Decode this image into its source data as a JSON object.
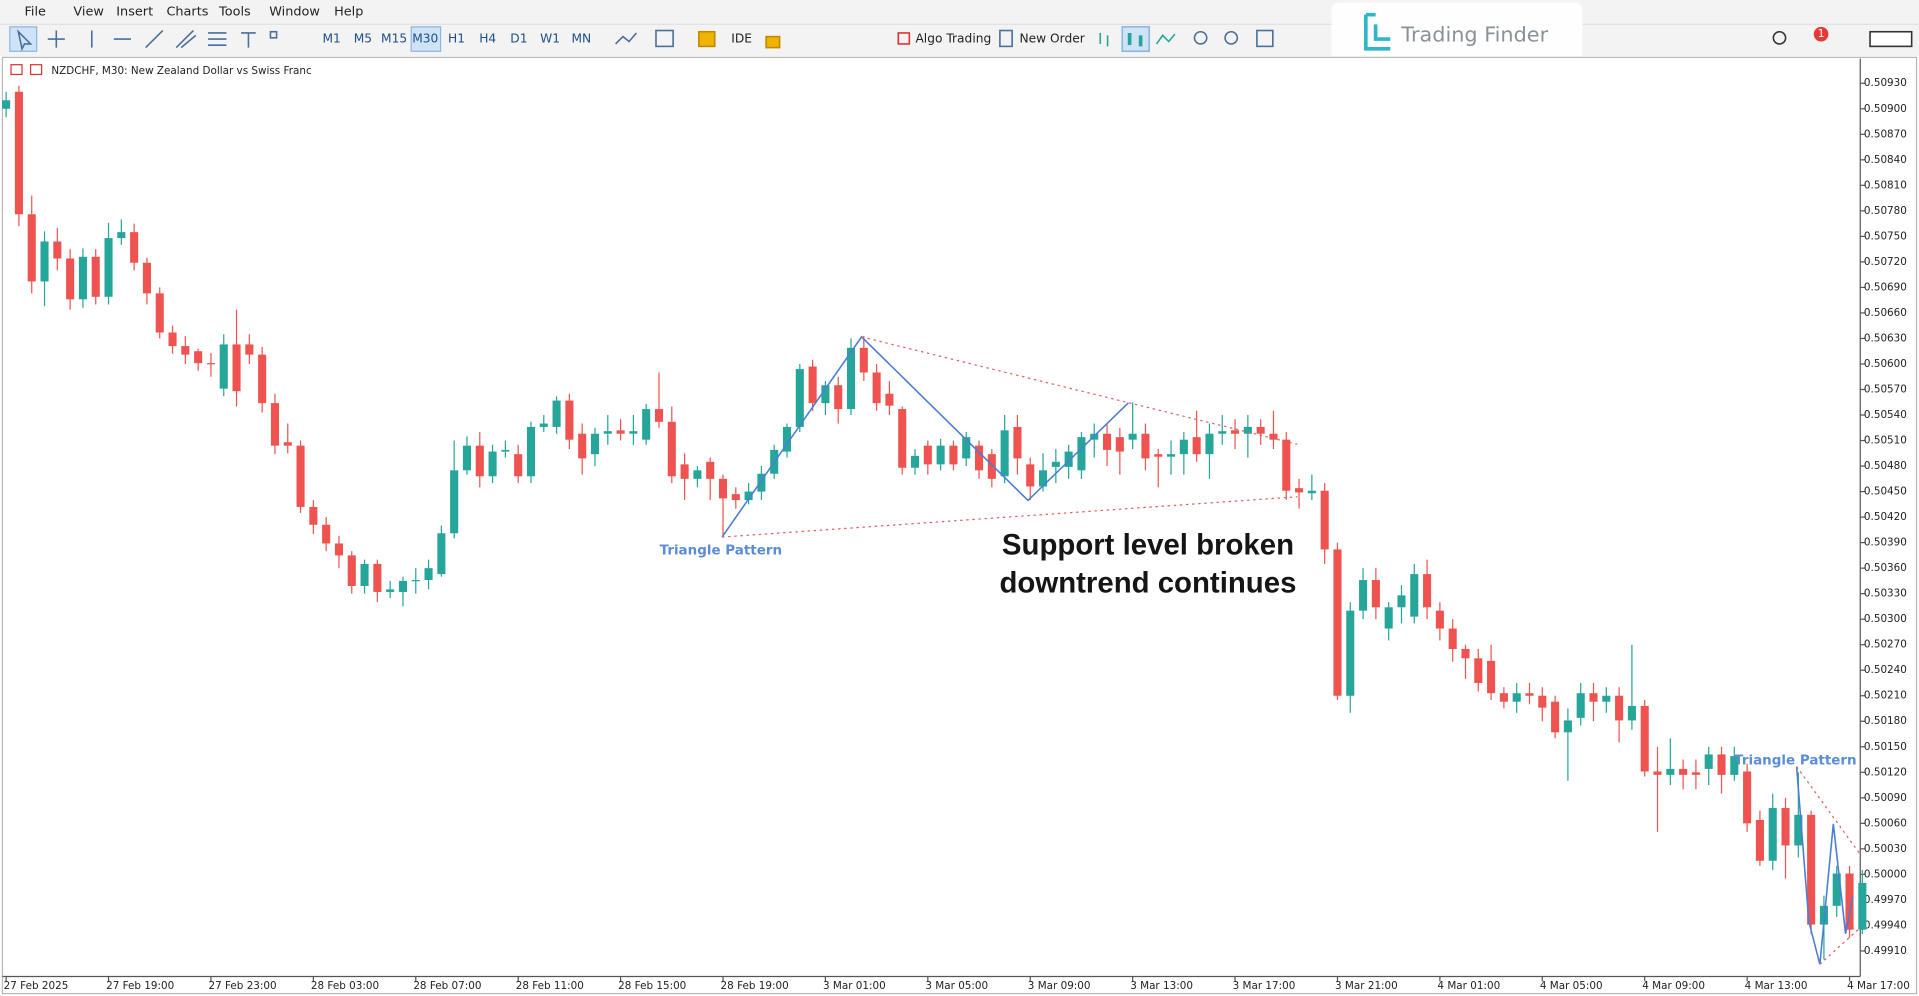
{
  "ui": {
    "menu": [
      "File",
      "View",
      "Insert",
      "Charts",
      "Tools",
      "Window",
      "Help"
    ],
    "timeframes": [
      "M1",
      "M5",
      "M15",
      "M30",
      "H1",
      "H4",
      "D1",
      "W1",
      "MN"
    ],
    "buttons": [
      "IDE",
      "Algo Trading",
      "New Order"
    ],
    "logo": "Trading Finder",
    "badge": 1
  },
  "chart_data": {
    "type": "candlestick",
    "title": "NZDCHF, M30:  New Zealand Dollar vs Swiss Franc",
    "up_color": "#26a69a",
    "down_color": "#ef5350",
    "grid": false,
    "open": [
      0.509,
      0.5092,
      0.50776,
      0.50697,
      0.50744,
      0.50724,
      0.50676,
      0.50726,
      0.50679,
      0.50748,
      0.50755,
      0.50719,
      0.50683,
      0.50637,
      0.50621,
      0.50615,
      0.50601,
      0.50571,
      0.50623,
      0.50623,
      0.50611,
      0.50554,
      0.50508,
      0.50504,
      0.50432,
      0.50411,
      0.50389,
      0.50375,
      0.50339,
      0.50365,
      0.50332,
      0.50332,
      0.50345,
      0.50346,
      0.50353,
      0.50401,
      0.50475,
      0.50504,
      0.50468,
      0.50497,
      0.50494,
      0.50468,
      0.50526,
      0.50526,
      0.50557,
      0.50518,
      0.50494,
      0.50518,
      0.50522,
      0.50518,
      0.50511,
      0.50547,
      0.50532,
      0.50482,
      0.50465,
      0.50485,
      0.50465,
      0.50447,
      0.5044,
      0.5045,
      0.50471,
      0.50497,
      0.50526,
      0.50597,
      0.50554,
      0.50575,
      0.50547,
      0.50619,
      0.5059,
      0.50565,
      0.50547,
      0.50478,
      0.50504,
      0.50482,
      0.50504,
      0.50489,
      0.50504,
      0.50494,
      0.50468,
      0.50526,
      0.50482,
      0.50456,
      0.50479,
      0.50479,
      0.50475,
      0.50511,
      0.50518,
      0.50514,
      0.50511,
      0.50518,
      0.50494,
      0.50491,
      0.50494,
      0.50514,
      0.50494,
      0.50518,
      0.50522,
      0.50518,
      0.50526,
      0.50518,
      0.50511,
      0.50454,
      0.50448,
      0.50451,
      0.50382,
      0.5021,
      0.5031,
      0.50346,
      0.50289,
      0.50314,
      0.50303,
      0.50353,
      0.5031,
      0.50289,
      0.50265,
      0.50254,
      0.50251,
      0.50213,
      0.50203,
      0.50213,
      0.5021,
      0.50203,
      0.50167,
      0.50184,
      0.50213,
      0.50203,
      0.5021,
      0.50181,
      0.50198,
      0.50121,
      0.50117,
      0.50124,
      0.5012,
      0.50124,
      0.50141,
      0.50117,
      0.50121,
      0.50064,
      0.50016,
      0.50078,
      0.50034,
      0.5007,
      0.49941,
      0.49963,
      0.50001,
      0.49935
    ],
    "high": [
      0.5092,
      0.50927,
      0.50798,
      0.50756,
      0.5076,
      0.50735,
      0.50736,
      0.50735,
      0.50766,
      0.5077,
      0.50765,
      0.50725,
      0.5069,
      0.50645,
      0.50633,
      0.50618,
      0.50613,
      0.50635,
      0.50664,
      0.50635,
      0.5062,
      0.50565,
      0.5053,
      0.5051,
      0.5044,
      0.5042,
      0.50398,
      0.5038,
      0.5037,
      0.5037,
      0.50345,
      0.5035,
      0.5036,
      0.5037,
      0.5041,
      0.5051,
      0.50515,
      0.5052,
      0.50505,
      0.5051,
      0.50505,
      0.50532,
      0.5054,
      0.50562,
      0.50565,
      0.5053,
      0.50525,
      0.5054,
      0.50535,
      0.5054,
      0.50553,
      0.5059,
      0.5055,
      0.50495,
      0.5048,
      0.5049,
      0.5047,
      0.50455,
      0.5046,
      0.5048,
      0.50505,
      0.5053,
      0.506,
      0.50605,
      0.5058,
      0.50585,
      0.5063,
      0.50633,
      0.506,
      0.5058,
      0.5055,
      0.505,
      0.5051,
      0.50512,
      0.5051,
      0.5052,
      0.5051,
      0.505,
      0.5054,
      0.5054,
      0.5049,
      0.50495,
      0.505,
      0.50505,
      0.5052,
      0.5053,
      0.5053,
      0.50525,
      0.50555,
      0.5053,
      0.505,
      0.5051,
      0.5052,
      0.50545,
      0.5053,
      0.5054,
      0.50535,
      0.5054,
      0.50535,
      0.50545,
      0.5052,
      0.50465,
      0.5047,
      0.5046,
      0.5039,
      0.5032,
      0.5036,
      0.5036,
      0.5032,
      0.5034,
      0.50365,
      0.5037,
      0.5032,
      0.503,
      0.5027,
      0.50265,
      0.5027,
      0.5022,
      0.50225,
      0.50225,
      0.5022,
      0.5021,
      0.50195,
      0.50225,
      0.50225,
      0.5022,
      0.5022,
      0.5027,
      0.50205,
      0.5015,
      0.5016,
      0.50135,
      0.50135,
      0.5015,
      0.5015,
      0.5015,
      0.5013,
      0.50075,
      0.50095,
      0.5009,
      0.5012,
      0.50075,
      0.49975,
      0.5001,
      0.5001,
      0.50005
    ],
    "low": [
      0.5089,
      0.50762,
      0.50683,
      0.50668,
      0.5071,
      0.50664,
      0.50666,
      0.5067,
      0.5067,
      0.5074,
      0.5071,
      0.5067,
      0.5063,
      0.50612,
      0.506,
      0.50592,
      0.50585,
      0.50562,
      0.5055,
      0.506,
      0.50543,
      0.50494,
      0.50495,
      0.50425,
      0.504,
      0.5038,
      0.5036,
      0.5033,
      0.5033,
      0.5032,
      0.50325,
      0.50315,
      0.5033,
      0.50335,
      0.5035,
      0.50395,
      0.5047,
      0.50455,
      0.5046,
      0.5049,
      0.5046,
      0.5046,
      0.5052,
      0.50518,
      0.505,
      0.5047,
      0.5048,
      0.50505,
      0.5051,
      0.50505,
      0.50505,
      0.50525,
      0.5046,
      0.5044,
      0.50455,
      0.5044,
      0.50399,
      0.5043,
      0.50435,
      0.5044,
      0.50465,
      0.5049,
      0.5052,
      0.50545,
      0.5054,
      0.5053,
      0.5054,
      0.5058,
      0.50545,
      0.5054,
      0.5047,
      0.5047,
      0.5047,
      0.50475,
      0.50475,
      0.5048,
      0.50465,
      0.50455,
      0.5046,
      0.5047,
      0.5044,
      0.5045,
      0.5046,
      0.50465,
      0.50465,
      0.5049,
      0.5048,
      0.5047,
      0.505,
      0.50475,
      0.50455,
      0.5047,
      0.5047,
      0.50485,
      0.50465,
      0.50505,
      0.505,
      0.5049,
      0.50505,
      0.505,
      0.5044,
      0.5043,
      0.5044,
      0.50365,
      0.50205,
      0.5019,
      0.503,
      0.503,
      0.50275,
      0.50295,
      0.50295,
      0.503,
      0.50275,
      0.5025,
      0.5023,
      0.50215,
      0.50205,
      0.50195,
      0.5019,
      0.502,
      0.5018,
      0.5016,
      0.5011,
      0.50175,
      0.5018,
      0.5019,
      0.50155,
      0.5017,
      0.50115,
      0.5005,
      0.50105,
      0.501,
      0.501,
      0.50105,
      0.50095,
      0.5011,
      0.5005,
      0.5001,
      0.50005,
      0.49995,
      0.5002,
      0.4993,
      0.499,
      0.4995,
      0.49925,
      0.4993
    ],
    "close": [
      0.5091,
      0.50776,
      0.50697,
      0.50744,
      0.50724,
      0.50676,
      0.50726,
      0.50679,
      0.50748,
      0.50755,
      0.50719,
      0.50683,
      0.50637,
      0.50621,
      0.50611,
      0.50601,
      0.506,
      0.50623,
      0.50568,
      0.50611,
      0.50554,
      0.50504,
      0.50504,
      0.50432,
      0.50411,
      0.50389,
      0.50375,
      0.50339,
      0.50365,
      0.50332,
      0.50335,
      0.50345,
      0.50346,
      0.5036,
      0.50401,
      0.50475,
      0.50504,
      0.50468,
      0.50497,
      0.50499,
      0.50468,
      0.50526,
      0.5053,
      0.50557,
      0.50511,
      0.50489,
      0.50518,
      0.50521,
      0.50518,
      0.50521,
      0.50547,
      0.50532,
      0.50468,
      0.50465,
      0.50475,
      0.50465,
      0.50442,
      0.5044,
      0.5045,
      0.50471,
      0.50499,
      0.50526,
      0.50594,
      0.50554,
      0.50575,
      0.50547,
      0.50619,
      0.5059,
      0.50554,
      0.50551,
      0.50478,
      0.50492,
      0.50482,
      0.50504,
      0.50482,
      0.50514,
      0.50475,
      0.50465,
      0.50522,
      0.50489,
      0.50456,
      0.50475,
      0.50485,
      0.50497,
      0.50514,
      0.50518,
      0.50499,
      0.50497,
      0.50518,
      0.50489,
      0.50491,
      0.50494,
      0.50511,
      0.50494,
      0.50518,
      0.50521,
      0.50518,
      0.50526,
      0.50518,
      0.50511,
      0.50451,
      0.50449,
      0.50451,
      0.50382,
      0.5021,
      0.5031,
      0.50346,
      0.50314,
      0.50314,
      0.50328,
      0.50353,
      0.50314,
      0.50289,
      0.50265,
      0.50254,
      0.50225,
      0.50213,
      0.50203,
      0.50213,
      0.5021,
      0.50196,
      0.50167,
      0.50181,
      0.50213,
      0.50203,
      0.5021,
      0.50181,
      0.50198,
      0.50121,
      0.50117,
      0.50124,
      0.50117,
      0.50117,
      0.50141,
      0.50117,
      0.50139,
      0.5006,
      0.50016,
      0.50078,
      0.50034,
      0.5007,
      0.49941,
      0.49963,
      0.50001,
      0.49935,
      0.4999
    ],
    "ylim": [
      0.4988,
      0.50959
    ],
    "yticks": [
      {
        "value": 0.5093,
        "label": "0.50930"
      },
      {
        "value": 0.509,
        "label": "0.50900"
      },
      {
        "value": 0.5087,
        "label": "0.50870"
      },
      {
        "value": 0.5084,
        "label": "0.50840"
      },
      {
        "value": 0.5081,
        "label": "0.50810"
      },
      {
        "value": 0.5078,
        "label": "0.50780"
      },
      {
        "value": 0.5075,
        "label": "0.50750"
      },
      {
        "value": 0.5072,
        "label": "0.50720"
      },
      {
        "value": 0.5069,
        "label": "0.50690"
      },
      {
        "value": 0.5066,
        "label": "0.50660"
      },
      {
        "value": 0.5063,
        "label": "0.50630"
      },
      {
        "value": 0.506,
        "label": "0.50600"
      },
      {
        "value": 0.5057,
        "label": "0.50570"
      },
      {
        "value": 0.5054,
        "label": "0.50540"
      },
      {
        "value": 0.5051,
        "label": "0.50510"
      },
      {
        "value": 0.5048,
        "label": "0.50480"
      },
      {
        "value": 0.5045,
        "label": "0.50450"
      },
      {
        "value": 0.5042,
        "label": "0.50420"
      },
      {
        "value": 0.5039,
        "label": "0.50390"
      },
      {
        "value": 0.5036,
        "label": "0.50360"
      },
      {
        "value": 0.5033,
        "label": "0.50330"
      },
      {
        "value": 0.503,
        "label": "0.50300"
      },
      {
        "value": 0.5027,
        "label": "0.50270"
      },
      {
        "value": 0.5024,
        "label": "0.50240"
      },
      {
        "value": 0.5021,
        "label": "0.50210"
      },
      {
        "value": 0.5018,
        "label": "0.50180"
      },
      {
        "value": 0.5015,
        "label": "0.50150"
      },
      {
        "value": 0.5012,
        "label": "0.50120"
      },
      {
        "value": 0.5009,
        "label": "0.50090"
      },
      {
        "value": 0.5006,
        "label": "0.50060"
      },
      {
        "value": 0.5003,
        "label": "0.50030"
      },
      {
        "value": 0.5,
        "label": "0.50000"
      },
      {
        "value": 0.4997,
        "label": "0.49970"
      },
      {
        "value": 0.4994,
        "label": "0.49940"
      },
      {
        "value": 0.4991,
        "label": "0.49910"
      }
    ],
    "xticks": [
      {
        "value": 0,
        "label": "27 Feb 2025"
      },
      {
        "value": 8,
        "label": "27 Feb 19:00"
      },
      {
        "value": 16,
        "label": "27 Feb 23:00"
      },
      {
        "value": 24,
        "label": "28 Feb 03:00"
      },
      {
        "value": 32,
        "label": "28 Feb 07:00"
      },
      {
        "value": 40,
        "label": "28 Feb 11:00"
      },
      {
        "value": 48,
        "label": "28 Feb 15:00"
      },
      {
        "value": 56,
        "label": "28 Feb 19:00"
      },
      {
        "value": 64,
        "label": "3 Mar 01:00"
      },
      {
        "value": 72,
        "label": "3 Mar 05:00"
      },
      {
        "value": 80,
        "label": "3 Mar 09:00"
      },
      {
        "value": 88,
        "label": "3 Mar 13:00"
      },
      {
        "value": 96,
        "label": "3 Mar 17:00"
      },
      {
        "value": 104,
        "label": "3 Mar 21:00"
      },
      {
        "value": 112,
        "label": "4 Mar 01:00"
      },
      {
        "value": 120,
        "label": "4 Mar 05:00"
      },
      {
        "value": 128,
        "label": "4 Mar 09:00"
      },
      {
        "value": 136,
        "label": "4 Mar 13:00"
      },
      {
        "value": 144,
        "label": "4 Mar 17:00"
      }
    ],
    "annotations": [
      "Triangle Pattern",
      "Support level broken",
      "downtrend continues",
      "Triangle Pattern"
    ]
  }
}
